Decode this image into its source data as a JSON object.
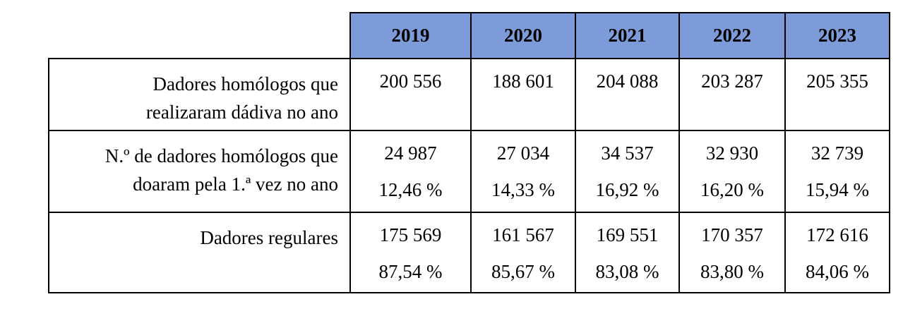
{
  "table": {
    "years": [
      "2019",
      "2020",
      "2021",
      "2022",
      "2023"
    ],
    "rows": [
      {
        "label_lines": [
          "Dadores homólogos que",
          "realizaram dádiva no ano"
        ],
        "values": [
          {
            "count": "200 556",
            "percent": ""
          },
          {
            "count": "188 601",
            "percent": ""
          },
          {
            "count": "204 088",
            "percent": ""
          },
          {
            "count": "203 287",
            "percent": ""
          },
          {
            "count": "205 355",
            "percent": ""
          }
        ]
      },
      {
        "label_lines": [
          "N.º de dadores homólogos que",
          "doaram pela 1.ª vez no ano"
        ],
        "values": [
          {
            "count": "24 987",
            "percent": "12,46 %"
          },
          {
            "count": "27 034",
            "percent": "14,33 %"
          },
          {
            "count": "34 537",
            "percent": "16,92 %"
          },
          {
            "count": "32 930",
            "percent": "16,20 %"
          },
          {
            "count": "32 739",
            "percent": "15,94 %"
          }
        ]
      },
      {
        "label_lines": [
          "Dadores regulares",
          ""
        ],
        "values": [
          {
            "count": "175 569",
            "percent": "87,54 %"
          },
          {
            "count": "161 567",
            "percent": "85,67 %"
          },
          {
            "count": "169 551",
            "percent": "83,08 %"
          },
          {
            "count": "170 357",
            "percent": "83,80 %"
          },
          {
            "count": "172 616",
            "percent": "84,06 %"
          }
        ]
      }
    ],
    "header_color": "#7d9bd9"
  }
}
